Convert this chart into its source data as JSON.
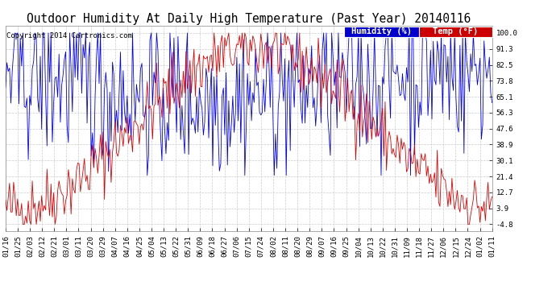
{
  "title": "Outdoor Humidity At Daily High Temperature (Past Year) 20140116",
  "copyright": "Copyright 2014 Cartronics.com",
  "legend_humidity_label": "Humidity (%)",
  "legend_temp_label": "Temp (°F)",
  "humidity_color": "#0000ee",
  "temp_color": "#dd0000",
  "legend_humidity_bg": "#0000cc",
  "legend_temp_bg": "#cc0000",
  "background_color": "#ffffff",
  "plot_bg_color": "#ffffff",
  "grid_color": "#cccccc",
  "yticks": [
    100.0,
    91.3,
    82.5,
    73.8,
    65.1,
    56.3,
    47.6,
    38.9,
    30.1,
    21.4,
    12.7,
    3.9,
    -4.8
  ],
  "ylim": [
    -8.5,
    104
  ],
  "x_labels": [
    "01/16",
    "01/25",
    "02/03",
    "02/12",
    "02/21",
    "03/01",
    "03/11",
    "03/20",
    "03/29",
    "04/07",
    "04/16",
    "04/25",
    "05/04",
    "05/13",
    "05/22",
    "05/31",
    "06/09",
    "06/18",
    "06/27",
    "07/06",
    "07/15",
    "07/24",
    "08/02",
    "08/11",
    "08/20",
    "08/29",
    "09/07",
    "09/16",
    "09/25",
    "10/04",
    "10/13",
    "10/22",
    "10/31",
    "11/09",
    "11/18",
    "11/27",
    "12/06",
    "12/15",
    "12/24",
    "01/02",
    "01/11"
  ],
  "title_fontsize": 10.5,
  "copyright_fontsize": 6.5,
  "tick_fontsize": 6.5,
  "legend_fontsize": 7.5
}
